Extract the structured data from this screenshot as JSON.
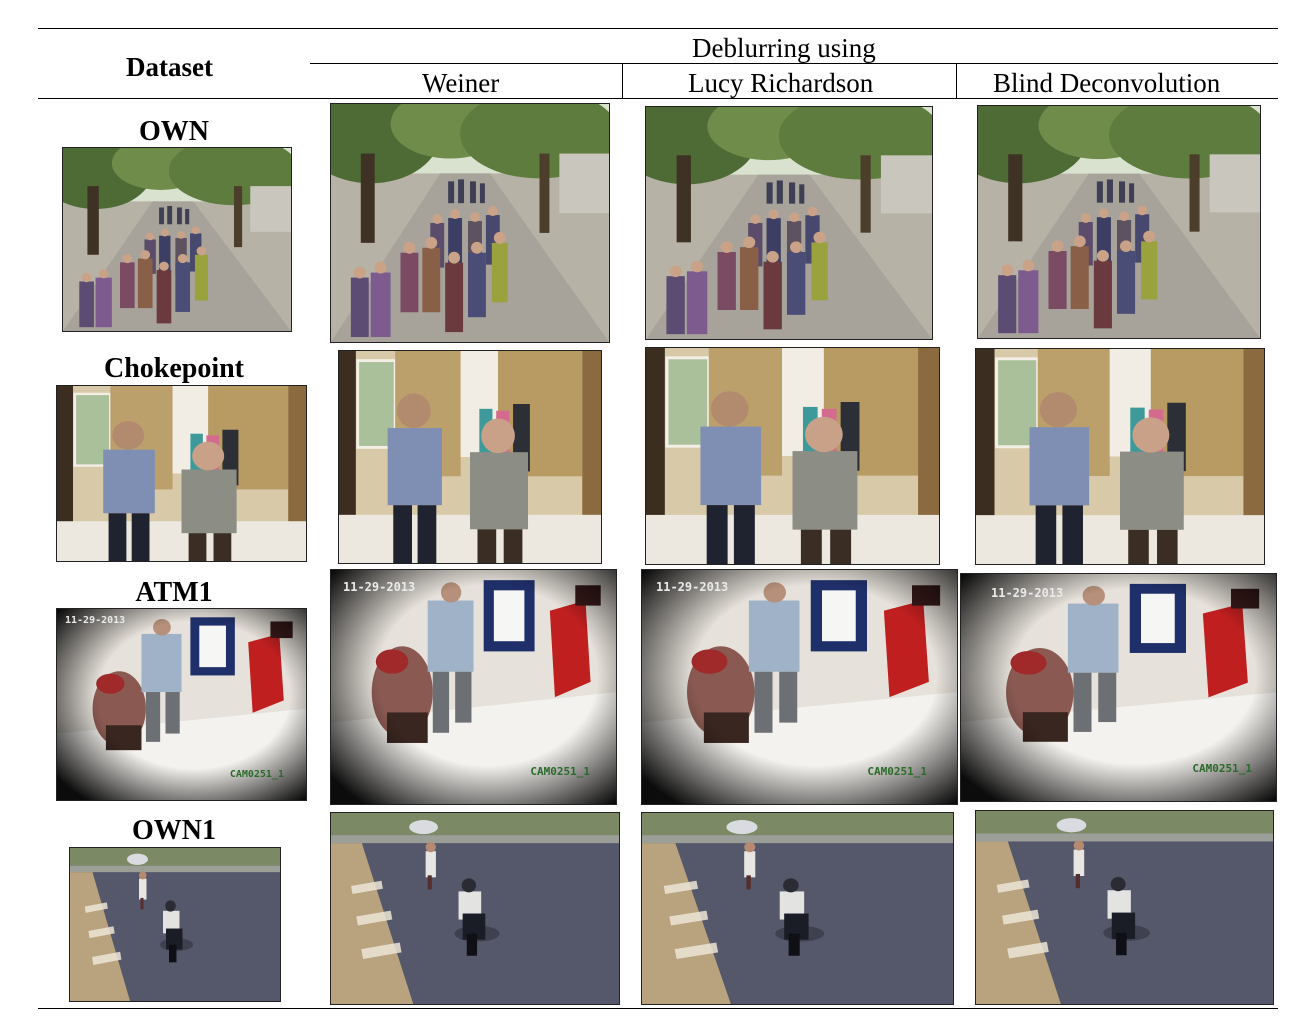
{
  "table": {
    "header": {
      "dataset_label": "Dataset",
      "group_label": "Deblurring using",
      "methods": [
        "Weiner",
        "Lucy Richardson",
        "Blind Deconvolution"
      ]
    },
    "rows": [
      {
        "dataset": "OWN",
        "scene": "outdoor-walkway-crowd"
      },
      {
        "dataset": "Chokepoint",
        "scene": "indoor-corridor-people"
      },
      {
        "dataset": "ATM1",
        "scene": "atm-cctv",
        "overlay_date": "11-29-2013",
        "overlay_cam": "CAM0251_1"
      },
      {
        "dataset": "OWN1",
        "scene": "street-motorbike"
      }
    ]
  }
}
